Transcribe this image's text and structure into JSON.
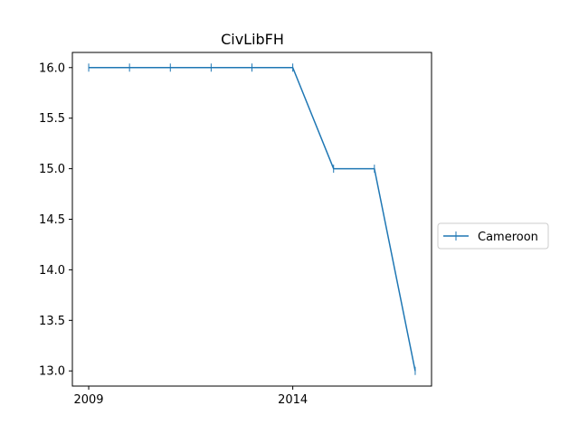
{
  "chart_data": {
    "type": "line",
    "title": "CivLibFH",
    "xlabel": "",
    "ylabel": "",
    "x": [
      2009,
      2010,
      2011,
      2012,
      2013,
      2014,
      2015,
      2016,
      2017
    ],
    "x_ticks": [
      2009,
      2014
    ],
    "y_ticks": [
      "13.0",
      "13.5",
      "14.0",
      "14.5",
      "15.0",
      "15.5",
      "16.0"
    ],
    "xlim": [
      2008.6,
      2017.4
    ],
    "ylim": [
      12.85,
      16.15
    ],
    "grid": false,
    "legend_position": "right, outside plot",
    "series": [
      {
        "name": "Cameroon",
        "color": "#1f77b4",
        "marker": "vertical-line",
        "values": [
          16,
          16,
          16,
          16,
          16,
          16,
          15,
          15,
          13
        ]
      }
    ]
  }
}
